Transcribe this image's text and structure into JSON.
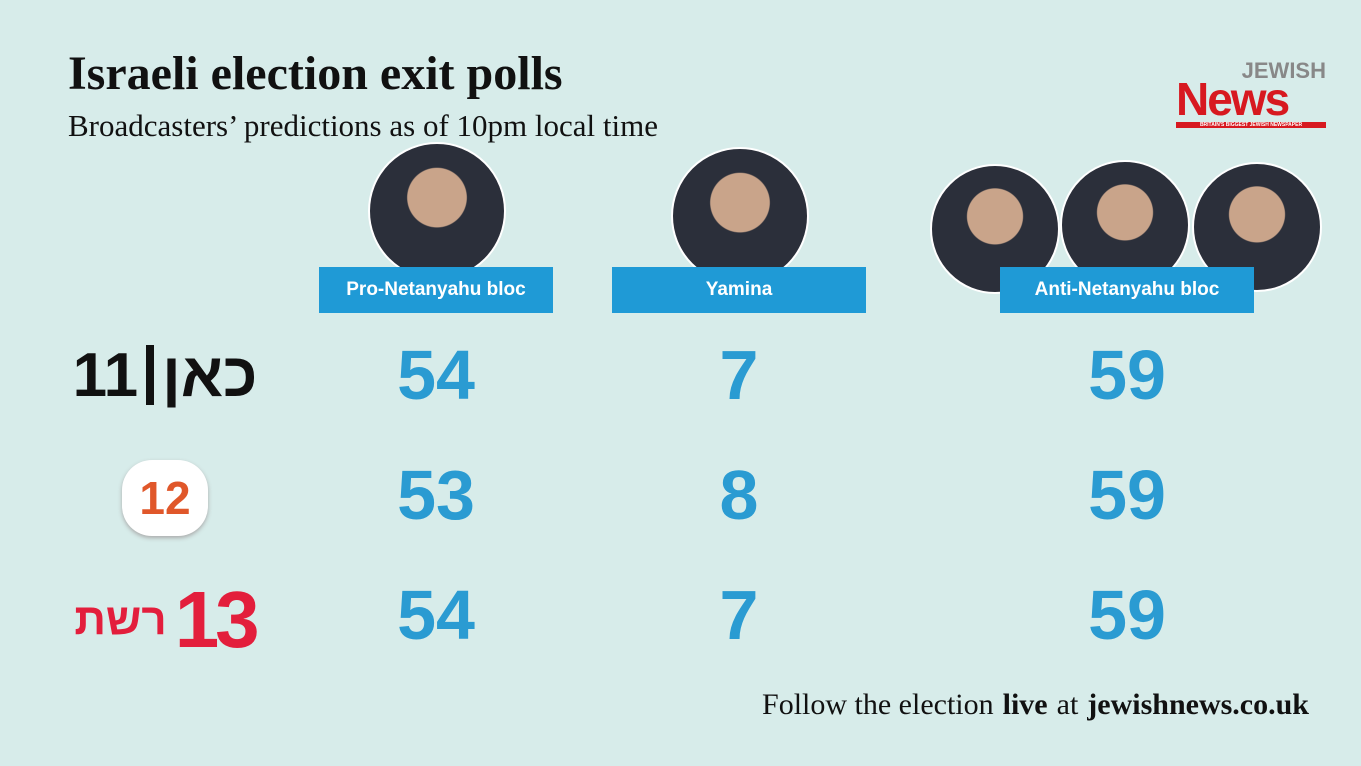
{
  "header": {
    "title": "Israeli election exit polls",
    "subtitle": "Broadcasters’ predictions as of 10pm local time"
  },
  "logo": {
    "top": "JEWISH",
    "main": "News",
    "tagline": "BRITAIN'S BIGGEST JEWISH NEWSPAPER"
  },
  "table": {
    "columns": [
      "Pro-Netanyahu bloc",
      "Yamina",
      "Anti-Netanyahu bloc"
    ],
    "rows": [
      {
        "name": "כאן",
        "number": "11",
        "values": [
          54,
          7,
          59
        ]
      },
      {
        "number": "12",
        "values": [
          53,
          8,
          59
        ]
      },
      {
        "name": "רשת",
        "number": "13",
        "values": [
          54,
          7,
          59
        ]
      }
    ]
  },
  "footer": {
    "parts": [
      "Follow the election",
      "live",
      "at",
      "jewishnews.co.uk"
    ]
  }
}
